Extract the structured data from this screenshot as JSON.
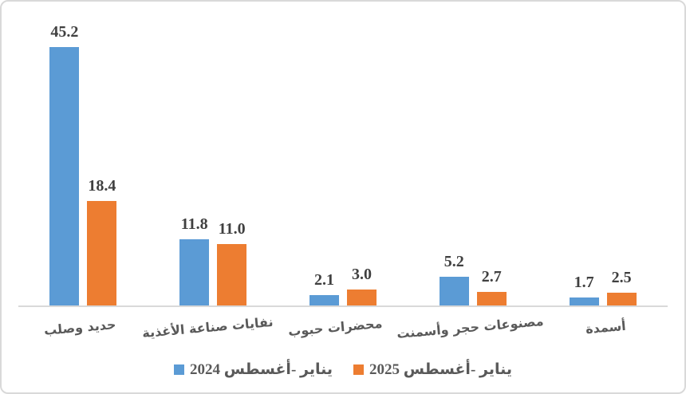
{
  "chart_data": {
    "type": "bar",
    "categories": [
      "حديد وصلب",
      "نفايات صناعة الأغذية",
      "محضرات حبوب",
      "مصنوعات حجر وأسمنت",
      "أسمدة"
    ],
    "series": [
      {
        "name": "يناير -أغسطس 2024",
        "color": "#5B9BD5",
        "values": [
          45.2,
          11.8,
          2.1,
          5.2,
          1.7
        ],
        "labels": [
          "45.2",
          "11.8",
          "2.1",
          "5.2",
          "1.7"
        ]
      },
      {
        "name": "يناير -أغسطس 2025",
        "color": "#ED7D31",
        "values": [
          18.4,
          11.0,
          3.0,
          2.7,
          2.5
        ],
        "labels": [
          "18.4",
          "11.0",
          "3.0",
          "2.7",
          "2.5"
        ]
      }
    ],
    "title": "",
    "xlabel": "",
    "ylabel": "",
    "ylim": [
      0,
      53
    ],
    "grid": false,
    "legend_position": "bottom",
    "text_direction": "rtl",
    "axis_line_color": "#D9D9D9",
    "data_label_color": "#404040",
    "category_label_color": "#595959"
  }
}
